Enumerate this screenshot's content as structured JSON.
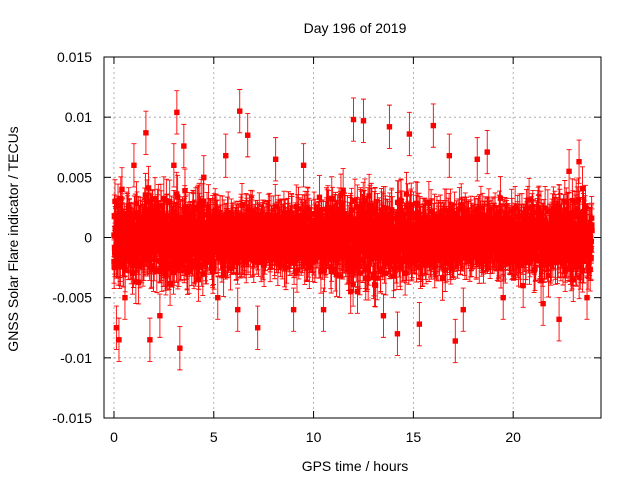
{
  "chart_data": {
    "type": "scatter",
    "title": "Day 196 of 2019",
    "xlabel": "GPS time / hours",
    "ylabel": "GNSS Solar Flare indicator / TECUs",
    "xlim": [
      -0.5,
      24.4
    ],
    "ylim": [
      -0.015,
      0.015
    ],
    "grid": true,
    "error_bars": true,
    "marker": "square",
    "color": "#ff0000",
    "x_ticks": [
      0,
      5,
      10,
      15,
      20
    ],
    "x_tick_labels": [
      "0",
      "5",
      "10",
      "15",
      "20"
    ],
    "y_ticks": [
      -0.015,
      -0.01,
      -0.005,
      0,
      0.005,
      0.01,
      0.015
    ],
    "y_tick_labels": [
      "-0.015",
      "-0.01",
      "-0.005",
      "0",
      "0.005",
      "0.01",
      "0.015"
    ],
    "series": [
      {
        "name": "GNSS Solar Flare indicator",
        "x": [
          0.0,
          0.05,
          0.12,
          0.25,
          0.4,
          0.55,
          1.0,
          1.6,
          1.8,
          2.3,
          3.0,
          3.15,
          3.3,
          3.5,
          4.5,
          5.2,
          5.6,
          6.2,
          6.3,
          6.7,
          7.2,
          8.1,
          9.0,
          9.5,
          10.5,
          11.8,
          12.0,
          12.2,
          12.5,
          13.5,
          13.8,
          14.2,
          14.8,
          15.3,
          16.0,
          16.8,
          17.1,
          17.5,
          18.2,
          18.7,
          19.5,
          20.5,
          21.5,
          22.3,
          22.8,
          23.3,
          23.7,
          23.9
        ],
        "y": [
          -0.002,
          0.003,
          -0.0075,
          -0.0085,
          0.004,
          -0.005,
          0.006,
          0.0087,
          -0.0085,
          -0.0065,
          0.006,
          0.0104,
          -0.0092,
          0.0076,
          0.005,
          -0.005,
          0.0068,
          -0.006,
          0.0105,
          0.0085,
          -0.0075,
          0.0065,
          -0.006,
          0.006,
          -0.006,
          -0.002,
          0.0098,
          -0.0045,
          0.0097,
          -0.0065,
          0.0092,
          -0.008,
          0.0086,
          -0.0072,
          0.0093,
          0.0068,
          -0.0086,
          -0.006,
          0.0065,
          0.0071,
          -0.005,
          -0.004,
          -0.0055,
          -0.0068,
          0.0055,
          0.0063,
          -0.005,
          -0.001
        ],
        "uncertainty": 0.0018,
        "note": "dense noise band of roughly 2500 samples spanning about ±0.006 TECUs over the full day; listed points are the visible extremes"
      }
    ]
  }
}
